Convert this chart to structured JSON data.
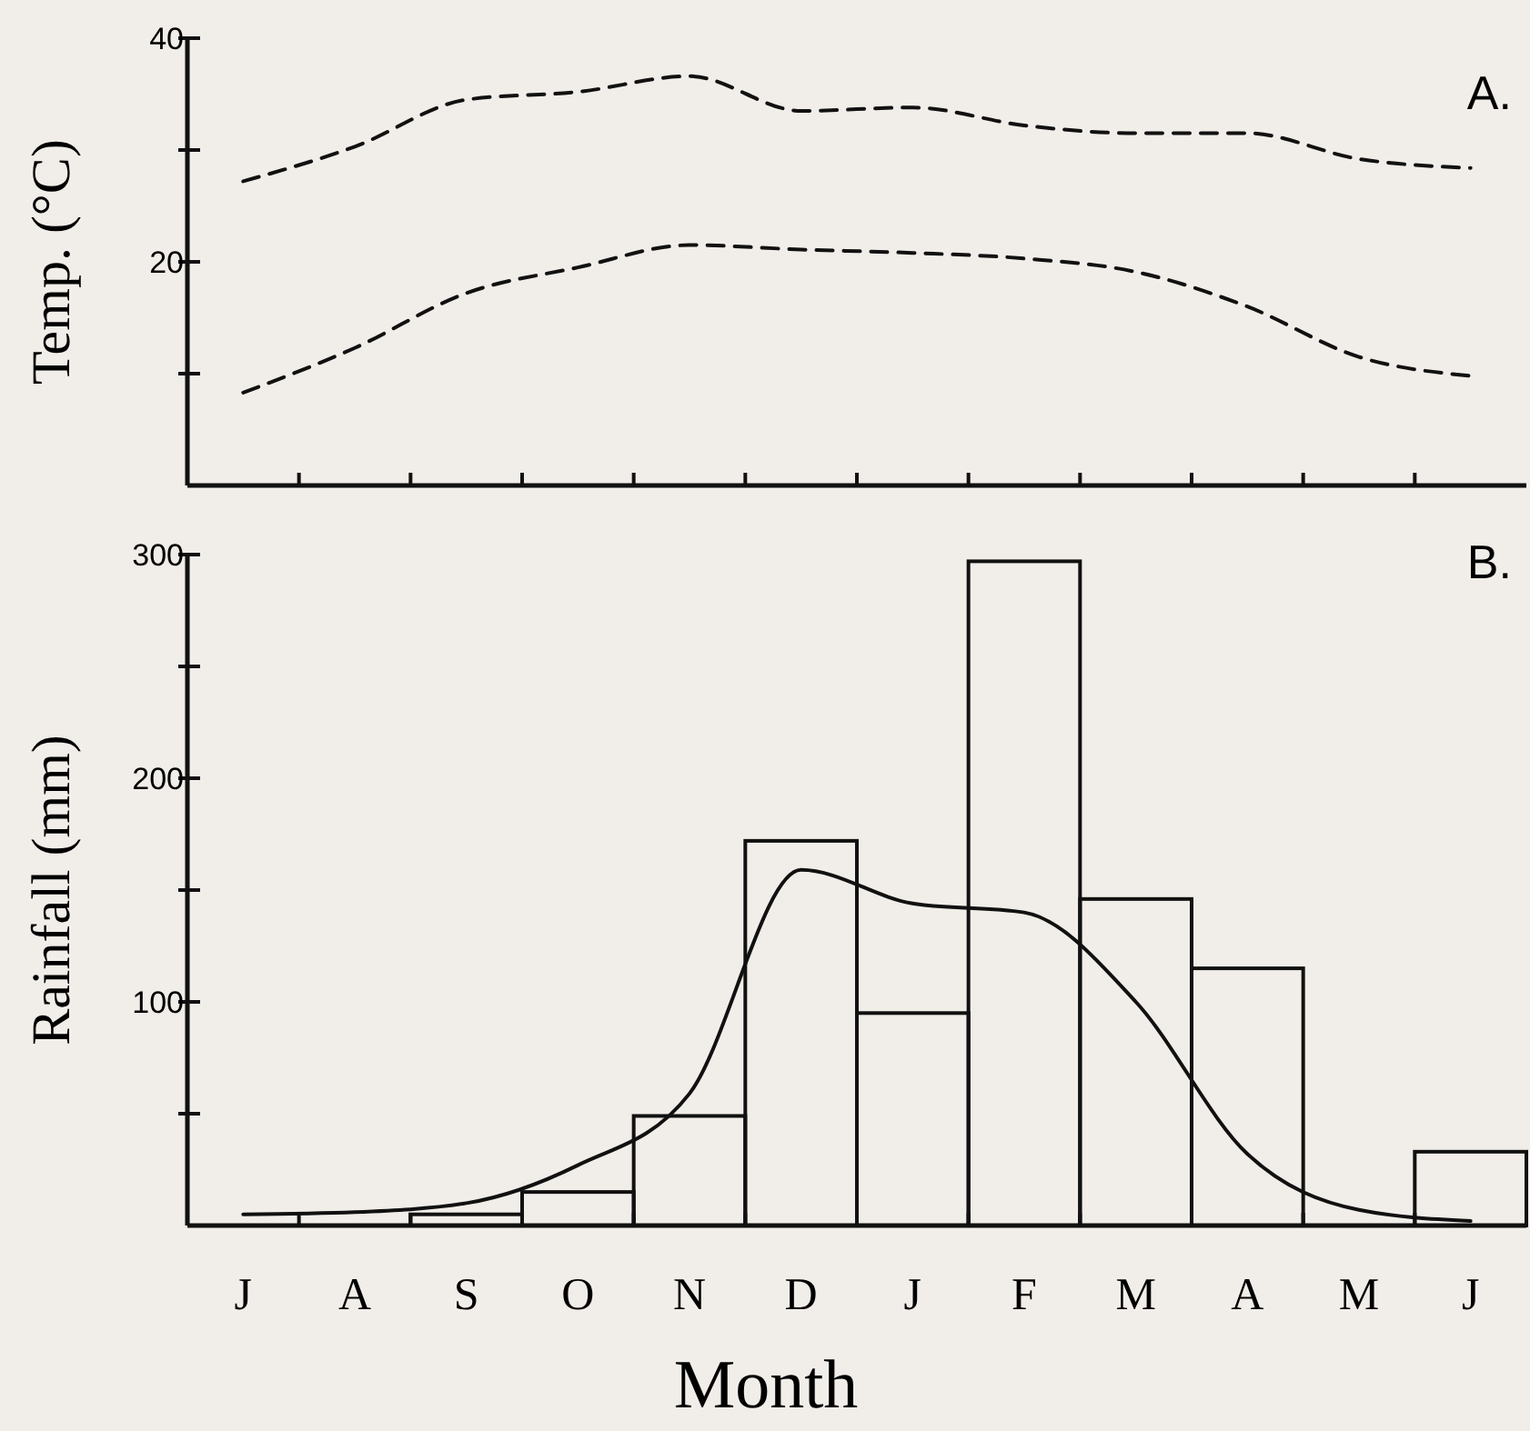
{
  "chart_data": [
    {
      "type": "line",
      "ylabel": "Temp. (°C)",
      "annotations": [
        "A."
      ],
      "categories": [
        null,
        null,
        null,
        null,
        null,
        null,
        null,
        null,
        null,
        null,
        null,
        null
      ],
      "ylim": [
        0,
        40
      ],
      "yticks": [
        {
          "value": 10,
          "label": null
        },
        20,
        {
          "value": 30,
          "label": null
        },
        40
      ],
      "tick_labels": "y",
      "line_style": "dashed",
      "marker": "none",
      "grid": false,
      "series": [
        {
          "color": "#111111",
          "values": [
            27.2,
            30.3,
            34.5,
            35.2,
            36.6,
            33.5,
            33.8,
            32.2,
            31.5,
            31.5,
            29.2,
            28.4
          ]
        },
        {
          "color": "#111111",
          "values": [
            8.3,
            12.3,
            17.2,
            19.5,
            21.5,
            21.1,
            20.8,
            20.3,
            19.1,
            16,
            11.5,
            9.8
          ]
        }
      ]
    },
    {
      "type": "bar",
      "ylabel": "Rainfall (mm)",
      "xlabel": "Month",
      "annotations": [
        "B."
      ],
      "categories": [
        "J",
        "A",
        "S",
        "O",
        "N",
        "D",
        "J",
        "F",
        "M",
        "A",
        "M",
        "J"
      ],
      "ylim": [
        0,
        300
      ],
      "yticks": [
        {
          "value": 50,
          "label": null
        },
        100,
        {
          "value": 150,
          "label": null
        },
        200,
        {
          "value": 250,
          "label": null
        },
        300
      ],
      "line_style": "solid",
      "marker": "none",
      "grid": false,
      "series": [
        {
          "color": "#111111",
          "values": [
            0,
            0,
            5,
            15,
            49,
            172,
            95,
            297,
            146,
            115,
            0,
            33
          ]
        },
        {
          "type": "line",
          "color": "#111111",
          "values": [
            5,
            6,
            10,
            27,
            59,
            159,
            144,
            140,
            100,
            32,
            7,
            2
          ]
        }
      ]
    }
  ]
}
